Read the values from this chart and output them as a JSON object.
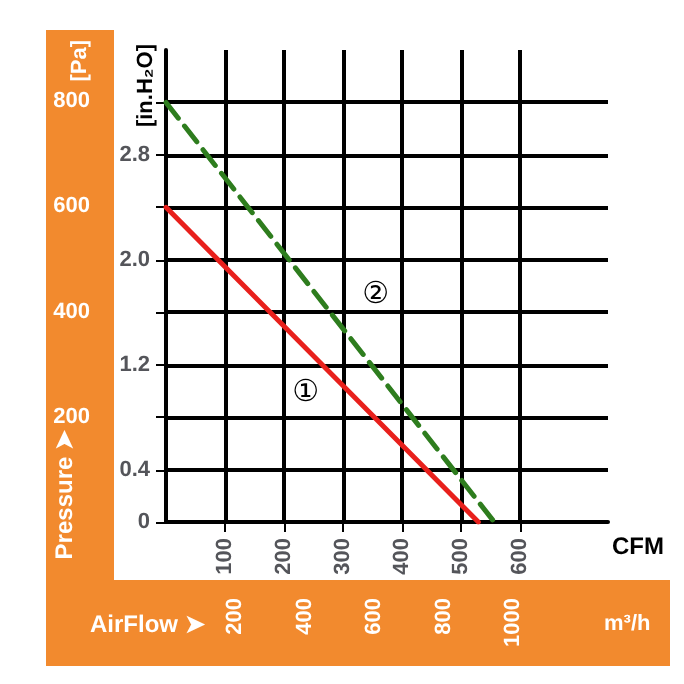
{
  "chart_data": {
    "type": "line",
    "ylabel": "[in.H₂O]",
    "y2label": "[Pa]",
    "xlabel": "CFM",
    "x2label": "m³/h",
    "xlim": [
      0,
      750
    ],
    "xticks": [
      100,
      200,
      300,
      400,
      500,
      600
    ],
    "ylim": [
      0,
      3.6
    ],
    "yticks": [
      0,
      0.4,
      {
        "value": 0.8,
        "label": null
      },
      1.2,
      {
        "value": 1.6,
        "label": null
      },
      {
        "value": 2,
        "label": "2.0"
      },
      {
        "value": 2.4,
        "label": null
      },
      2.8,
      {
        "value": 3.2,
        "label": null
      }
    ],
    "y2lim": [
      0,
      897
    ],
    "y2ticks": [
      200,
      400,
      600,
      800
    ],
    "x2lim": [
      0,
      1274
    ],
    "x2ticks": [
      200,
      400,
      600,
      800,
      1000
    ],
    "grid": true,
    "marker": "none",
    "series": [
      {
        "color": "#e8201c",
        "x": [
          0,
          530
        ],
        "values": [
          2.4,
          0
        ],
        "line_style": "solid"
      },
      {
        "color": "#2e7d1e",
        "x": [
          0,
          557
        ],
        "values": [
          3.2,
          0
        ],
        "line_style": "dashed"
      }
    ],
    "annotations": [
      "Pressure ➤",
      "AirFlow ➤",
      {
        "text": "①",
        "x": 237,
        "y": 1.0
      },
      {
        "text": "②",
        "x": 356,
        "y": 1.75
      }
    ]
  }
}
